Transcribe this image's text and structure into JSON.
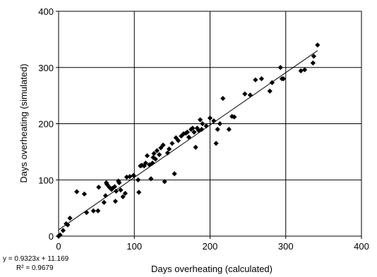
{
  "chart_data": {
    "type": "scatter",
    "xlabel": "Days overheating (calculated)",
    "ylabel": "Days overheating (simulated)",
    "xlim": [
      0,
      400
    ],
    "ylim": [
      0,
      400
    ],
    "xticks": [
      "0",
      "100",
      "200",
      "300",
      "400"
    ],
    "yticks": [
      "0",
      "100",
      "200",
      "300",
      "400"
    ],
    "grid": true,
    "marker_color": "#000000",
    "trendline": {
      "slope": 0.9323,
      "intercept": 11.169,
      "x_range": [
        0,
        342
      ]
    },
    "annotations": {
      "equation": "y = 0.9323x + 11.169",
      "r2": "R² = 0.9679"
    },
    "points": [
      [
        0,
        0
      ],
      [
        2,
        2
      ],
      [
        6,
        10
      ],
      [
        10,
        22
      ],
      [
        12,
        20
      ],
      [
        15,
        32
      ],
      [
        24,
        79
      ],
      [
        34,
        75
      ],
      [
        37,
        42
      ],
      [
        46,
        45
      ],
      [
        52,
        45
      ],
      [
        53,
        87
      ],
      [
        60,
        60
      ],
      [
        62,
        72
      ],
      [
        63,
        95
      ],
      [
        64,
        92
      ],
      [
        67,
        87
      ],
      [
        70,
        83
      ],
      [
        71,
        85
      ],
      [
        74,
        88
      ],
      [
        75,
        62
      ],
      [
        76,
        80
      ],
      [
        79,
        98
      ],
      [
        80,
        95
      ],
      [
        82,
        82
      ],
      [
        85,
        70
      ],
      [
        88,
        76
      ],
      [
        90,
        105
      ],
      [
        94,
        106
      ],
      [
        99,
        108
      ],
      [
        105,
        100
      ],
      [
        106,
        78
      ],
      [
        108,
        125
      ],
      [
        110,
        126
      ],
      [
        113,
        125
      ],
      [
        115,
        130
      ],
      [
        117,
        143
      ],
      [
        120,
        127
      ],
      [
        122,
        102
      ],
      [
        124,
        130
      ],
      [
        125,
        140
      ],
      [
        126,
        147
      ],
      [
        128,
        137
      ],
      [
        130,
        152
      ],
      [
        133,
        145
      ],
      [
        135,
        157
      ],
      [
        138,
        162
      ],
      [
        140,
        97
      ],
      [
        144,
        148
      ],
      [
        146,
        155
      ],
      [
        150,
        165
      ],
      [
        153,
        111
      ],
      [
        155,
        175
      ],
      [
        158,
        170
      ],
      [
        162,
        178
      ],
      [
        165,
        182
      ],
      [
        168,
        183
      ],
      [
        170,
        185
      ],
      [
        172,
        176
      ],
      [
        175,
        190
      ],
      [
        177,
        192
      ],
      [
        179,
        185
      ],
      [
        181,
        158
      ],
      [
        183,
        192
      ],
      [
        185,
        188
      ],
      [
        187,
        207
      ],
      [
        189,
        190
      ],
      [
        190,
        200
      ],
      [
        195,
        196
      ],
      [
        200,
        210
      ],
      [
        205,
        205
      ],
      [
        208,
        165
      ],
      [
        210,
        190
      ],
      [
        213,
        200
      ],
      [
        217,
        245
      ],
      [
        225,
        190
      ],
      [
        229,
        213
      ],
      [
        232,
        212
      ],
      [
        246,
        253
      ],
      [
        253,
        251
      ],
      [
        260,
        278
      ],
      [
        268,
        280
      ],
      [
        279,
        258
      ],
      [
        282,
        273
      ],
      [
        293,
        300
      ],
      [
        295,
        280
      ],
      [
        297,
        280
      ],
      [
        320,
        294
      ],
      [
        325,
        296
      ],
      [
        336,
        308
      ],
      [
        337,
        320
      ],
      [
        342,
        340
      ]
    ]
  }
}
